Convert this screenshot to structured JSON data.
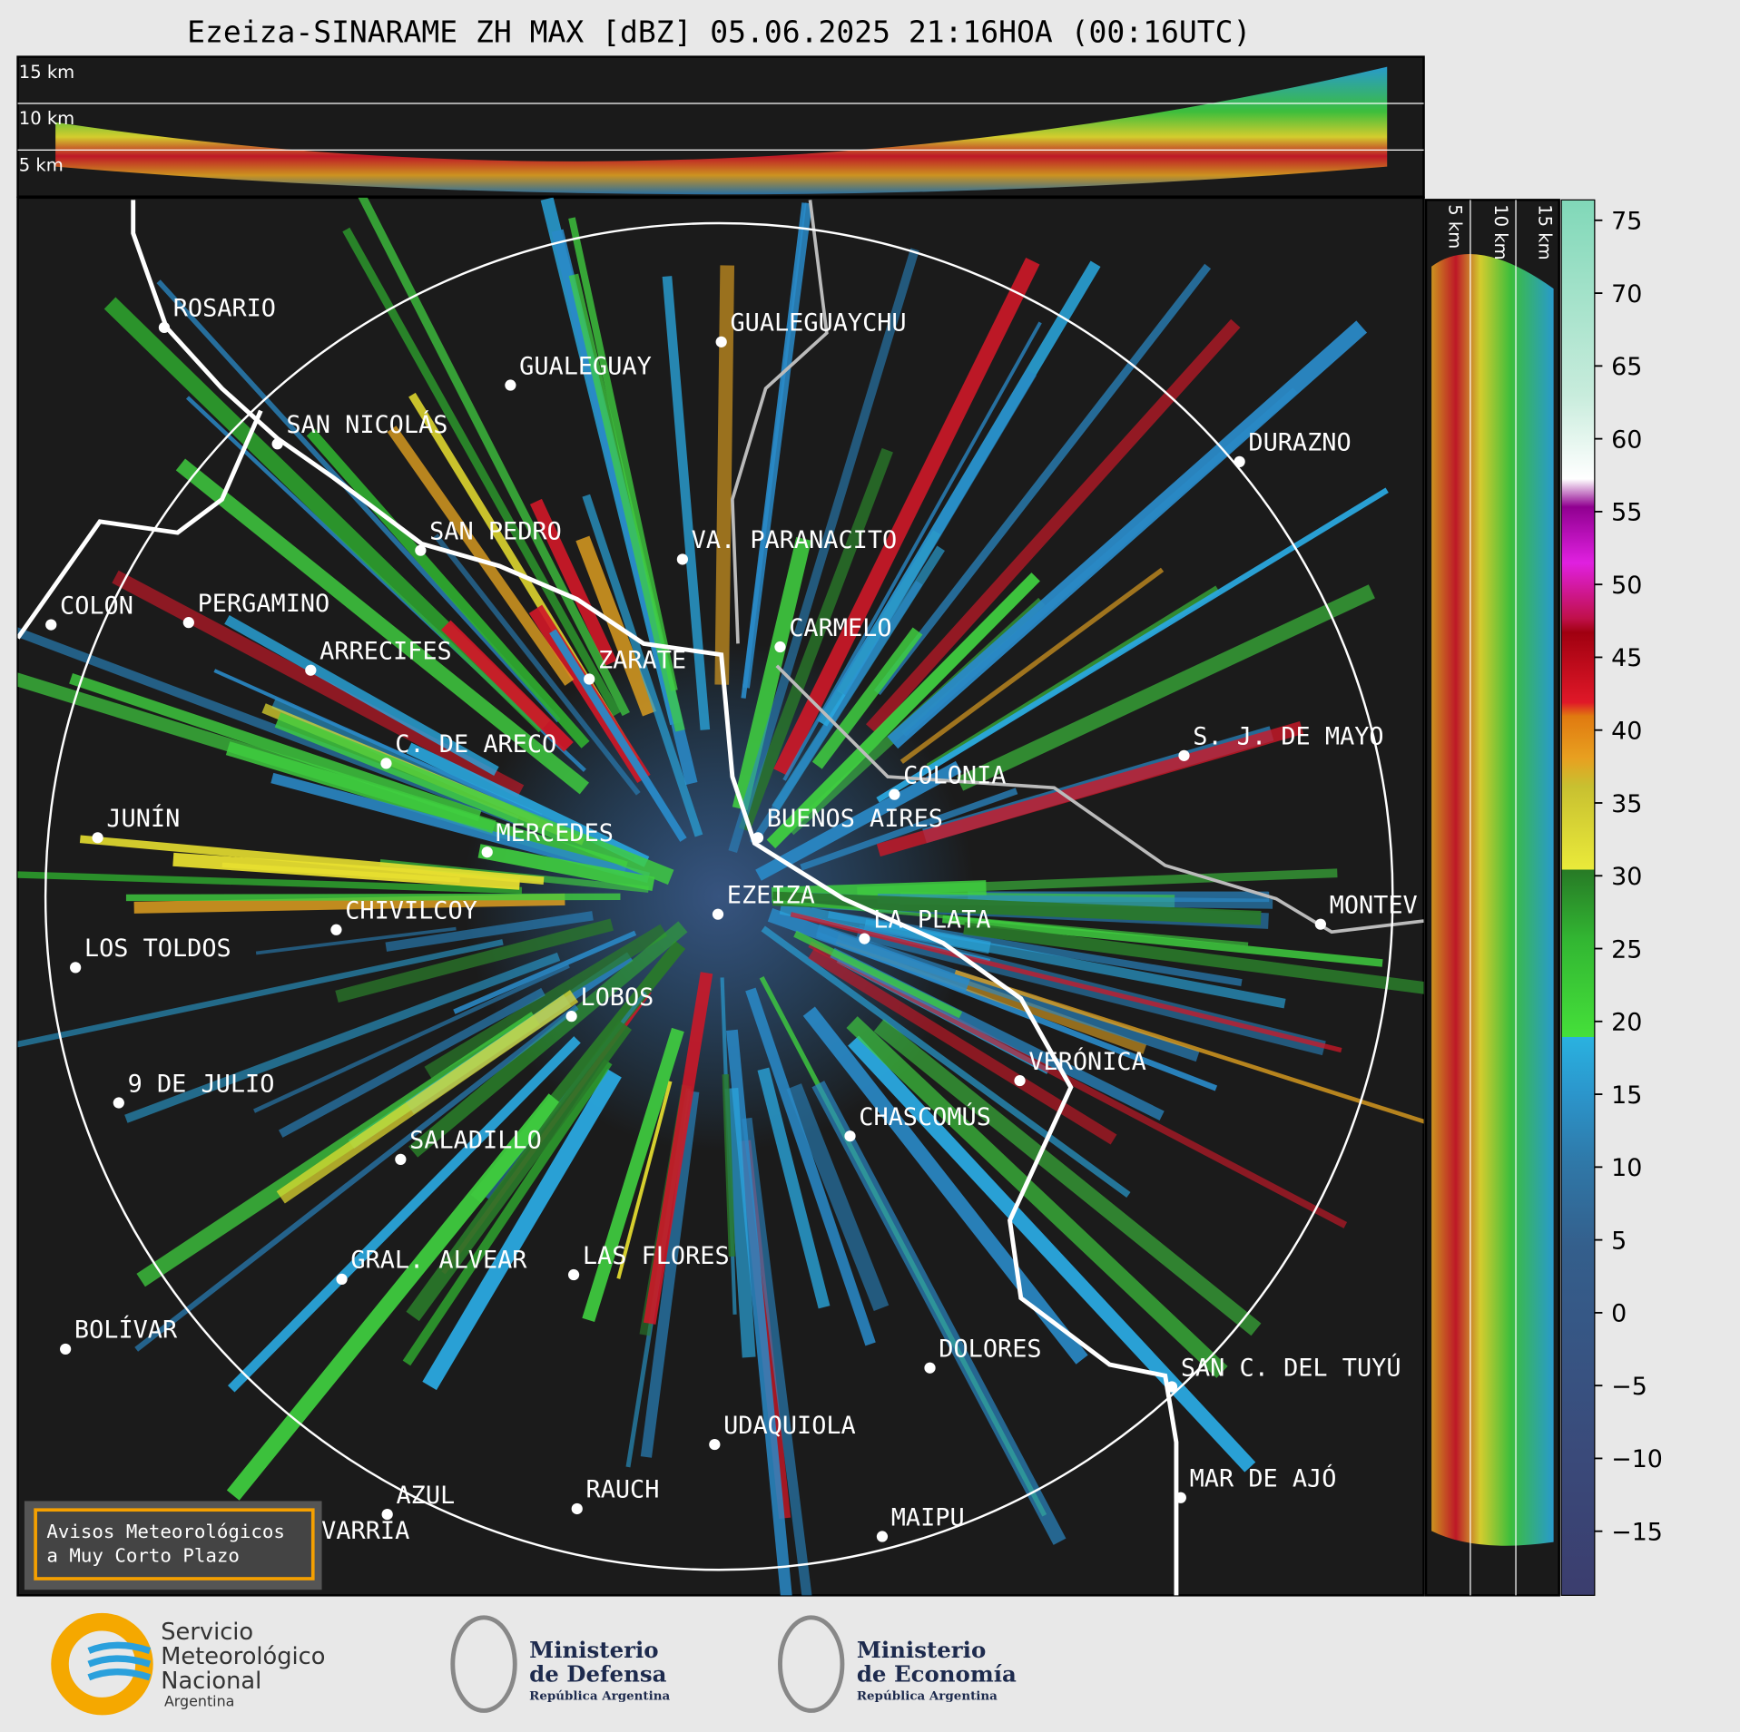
{
  "title": "Ezeiza-SINARAME ZH MAX [dBZ] 05.06.2025 21:16HOA (00:16UTC)",
  "cross_section_top": {
    "height_labels": [
      "15 km",
      "10 km",
      "5 km"
    ]
  },
  "cross_section_right": {
    "height_labels": [
      "5 km",
      "10 km",
      "15 km"
    ]
  },
  "cities": [
    "ROSARIO",
    "GUALEGUAYCHU",
    "GUALEGUAY",
    "SAN NICOLÁS",
    "DURAZNO",
    "SAN PEDRO",
    "VA. PARANACITO",
    "COLON",
    "PERGAMINO",
    "CARMELO",
    "ARRECIFES",
    "ZARATE",
    "C. DE ARECO",
    "S. J. DE MAYO",
    "COLONIA",
    "JUNÍN",
    "BUENOS AIRES",
    "MERCEDES",
    "EZEIZA",
    "LA PLATA",
    "CHIVILCOY",
    "MONTEV",
    "LOS TOLDOS",
    "LOBOS",
    "VERÓNICA",
    "9 DE JULIO",
    "CHASCOMÚS",
    "SALADILLO",
    "GRAL. ALVEAR",
    "LAS FLORES",
    "BOLÍVAR",
    "DOLORES",
    "SAN C. DEL TUYÚ",
    "UDAQUIOLA",
    "MAR DE AJÓ",
    "AZUL",
    "RAUCH",
    "OLAVARRÍA",
    "MAIPU"
  ],
  "colorbar": {
    "lim": [
      -19.4,
      76.4
    ],
    "ticks": [
      {
        "value": -15,
        "label": "−15"
      },
      {
        "value": -10,
        "label": "−10"
      },
      {
        "value": -5,
        "label": "−5"
      },
      0,
      5,
      10,
      15,
      20,
      25,
      30,
      35,
      40,
      45,
      50,
      55,
      60,
      65,
      70,
      75
    ]
  },
  "notice": [
    "Avisos Meteorológicos",
    "a Muy Corto Plazo"
  ],
  "logos": {
    "smn": [
      "Servicio",
      "Meteorológico",
      "Nacional",
      "Argentina"
    ],
    "defensa": [
      "Ministerio",
      "de Defensa",
      "República Argentina"
    ],
    "economia": [
      "Ministerio",
      "de Economía",
      "República Argentina"
    ]
  }
}
